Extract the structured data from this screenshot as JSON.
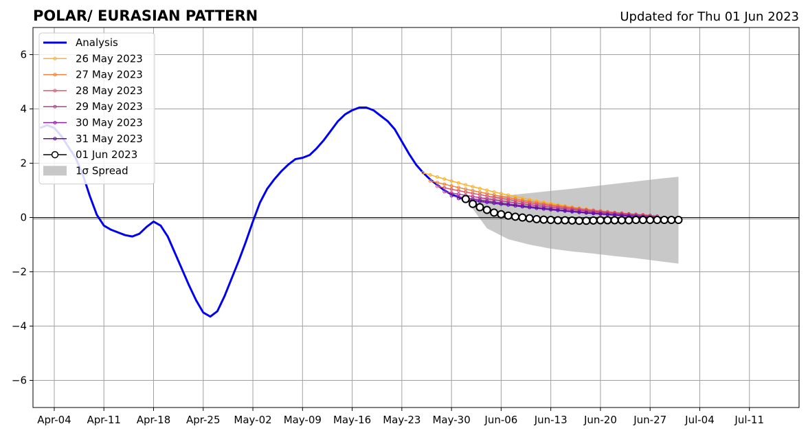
{
  "chart_data": {
    "type": "line",
    "title": "POLAR/ EURASIAN  PATTERN",
    "subtitle": "Updated for Thu 01 Jun 2023",
    "xlabel": "",
    "ylabel": "",
    "xlim": [
      "2023-04-01",
      "2023-07-18"
    ],
    "ylim": [
      -7,
      7
    ],
    "grid": true,
    "legend_position": "top-left",
    "x_ticks": [
      "2023-04-04",
      "2023-04-11",
      "2023-04-18",
      "2023-04-25",
      "2023-05-02",
      "2023-05-09",
      "2023-05-16",
      "2023-05-23",
      "2023-05-30",
      "2023-06-06",
      "2023-06-13",
      "2023-06-20",
      "2023-06-27",
      "2023-07-04",
      "2023-07-11"
    ],
    "x_tick_labels": [
      "Apr-04",
      "Apr-11",
      "Apr-18",
      "Apr-25",
      "May-02",
      "May-09",
      "May-16",
      "May-23",
      "May-30",
      "Jun-06",
      "Jun-13",
      "Jun-20",
      "Jun-27",
      "Jul-04",
      "Jul-11"
    ],
    "y_ticks": [
      -6,
      -4,
      -2,
      0,
      2,
      4,
      6
    ],
    "y_tick_labels": [
      "−6",
      "−4",
      "−2",
      "0",
      "2",
      "4",
      "6"
    ],
    "series": [
      {
        "name": "Analysis",
        "color": "#0000ee",
        "style": "analysis",
        "x": [
          "2023-04-02",
          "2023-04-03",
          "2023-04-04",
          "2023-04-05",
          "2023-04-06",
          "2023-04-07",
          "2023-04-08",
          "2023-04-09",
          "2023-04-10",
          "2023-04-11",
          "2023-04-12",
          "2023-04-13",
          "2023-04-14",
          "2023-04-15",
          "2023-04-16",
          "2023-04-17",
          "2023-04-18",
          "2023-04-19",
          "2023-04-20",
          "2023-04-21",
          "2023-04-22",
          "2023-04-23",
          "2023-04-24",
          "2023-04-25",
          "2023-04-26",
          "2023-04-27",
          "2023-04-28",
          "2023-04-29",
          "2023-04-30",
          "2023-05-01",
          "2023-05-02",
          "2023-05-03",
          "2023-05-04",
          "2023-05-05",
          "2023-05-06",
          "2023-05-07",
          "2023-05-08",
          "2023-05-09",
          "2023-05-10",
          "2023-05-11",
          "2023-05-12",
          "2023-05-13",
          "2023-05-14",
          "2023-05-15",
          "2023-05-16",
          "2023-05-17",
          "2023-05-18",
          "2023-05-19",
          "2023-05-20",
          "2023-05-21",
          "2023-05-22",
          "2023-05-23",
          "2023-05-24",
          "2023-05-25",
          "2023-05-26",
          "2023-05-27",
          "2023-05-28",
          "2023-05-29",
          "2023-05-30",
          "2023-05-31",
          "2023-06-01"
        ],
        "values": [
          3.3,
          3.4,
          3.3,
          3.0,
          2.6,
          2.2,
          1.6,
          0.8,
          0.1,
          -0.3,
          -0.45,
          -0.55,
          -0.65,
          -0.7,
          -0.6,
          -0.35,
          -0.15,
          -0.3,
          -0.7,
          -1.3,
          -1.9,
          -2.5,
          -3.05,
          -3.5,
          -3.65,
          -3.45,
          -2.9,
          -2.25,
          -1.6,
          -0.9,
          -0.15,
          0.55,
          1.05,
          1.4,
          1.7,
          1.95,
          2.15,
          2.2,
          2.3,
          2.55,
          2.85,
          3.2,
          3.55,
          3.8,
          3.95,
          4.05,
          4.05,
          3.95,
          3.75,
          3.55,
          3.25,
          2.8,
          2.35,
          1.95,
          1.65,
          1.4,
          1.2,
          1.0,
          0.85,
          0.75,
          0.65
        ]
      },
      {
        "name": "26 May 2023",
        "color": "#f8b32c",
        "style": "forecast",
        "start": "2023-05-26",
        "days": 30,
        "start_value": 1.65,
        "end_value": 0.1
      },
      {
        "name": "27 May 2023",
        "color": "#f0823a",
        "style": "forecast",
        "start": "2023-05-27",
        "days": 30,
        "start_value": 1.35,
        "end_value": 0.1
      },
      {
        "name": "28 May 2023",
        "color": "#e0566a",
        "style": "forecast",
        "start": "2023-05-28",
        "days": 30,
        "start_value": 1.15,
        "end_value": 0.08
      },
      {
        "name": "29 May 2023",
        "color": "#b43c8c",
        "style": "forecast",
        "start": "2023-05-29",
        "days": 30,
        "start_value": 0.95,
        "end_value": 0.05
      },
      {
        "name": "30 May 2023",
        "color": "#8a1ea0",
        "style": "forecast",
        "start": "2023-05-30",
        "days": 30,
        "start_value": 0.8,
        "end_value": 0.0
      },
      {
        "name": "31 May 2023",
        "color": "#5a10a8",
        "style": "forecast",
        "start": "2023-05-31",
        "days": 30,
        "start_value": 0.7,
        "end_value": -0.03
      },
      {
        "name": "01 Jun 2023",
        "color": "#000000",
        "style": "current",
        "x": [
          "2023-06-01",
          "2023-06-02",
          "2023-06-03",
          "2023-06-04",
          "2023-06-05",
          "2023-06-06",
          "2023-06-07",
          "2023-06-08",
          "2023-06-09",
          "2023-06-10",
          "2023-06-11",
          "2023-06-12",
          "2023-06-13",
          "2023-06-14",
          "2023-06-15",
          "2023-06-16",
          "2023-06-17",
          "2023-06-18",
          "2023-06-19",
          "2023-06-20",
          "2023-06-21",
          "2023-06-22",
          "2023-06-23",
          "2023-06-24",
          "2023-06-25",
          "2023-06-26",
          "2023-06-27",
          "2023-06-28",
          "2023-06-29",
          "2023-06-30",
          "2023-07-01"
        ],
        "values": [
          0.68,
          0.5,
          0.38,
          0.28,
          0.18,
          0.12,
          0.07,
          0.03,
          0.0,
          -0.03,
          -0.06,
          -0.08,
          -0.09,
          -0.1,
          -0.1,
          -0.11,
          -0.12,
          -0.12,
          -0.11,
          -0.1,
          -0.1,
          -0.1,
          -0.1,
          -0.1,
          -0.09,
          -0.09,
          -0.09,
          -0.09,
          -0.09,
          -0.09,
          -0.09
        ]
      }
    ],
    "spread": {
      "name": "1σ Spread",
      "color": "#c8c8c8",
      "x": [
        "2023-06-01",
        "2023-06-04",
        "2023-06-07",
        "2023-06-10",
        "2023-06-13",
        "2023-06-16",
        "2023-06-19",
        "2023-06-22",
        "2023-06-25",
        "2023-06-28",
        "2023-07-01"
      ],
      "upper": [
        0.68,
        0.75,
        0.82,
        0.9,
        0.98,
        1.06,
        1.15,
        1.24,
        1.33,
        1.42,
        1.5
      ],
      "lower": [
        0.68,
        -0.4,
        -0.8,
        -1.0,
        -1.15,
        -1.25,
        -1.33,
        -1.42,
        -1.5,
        -1.6,
        -1.7
      ]
    }
  }
}
